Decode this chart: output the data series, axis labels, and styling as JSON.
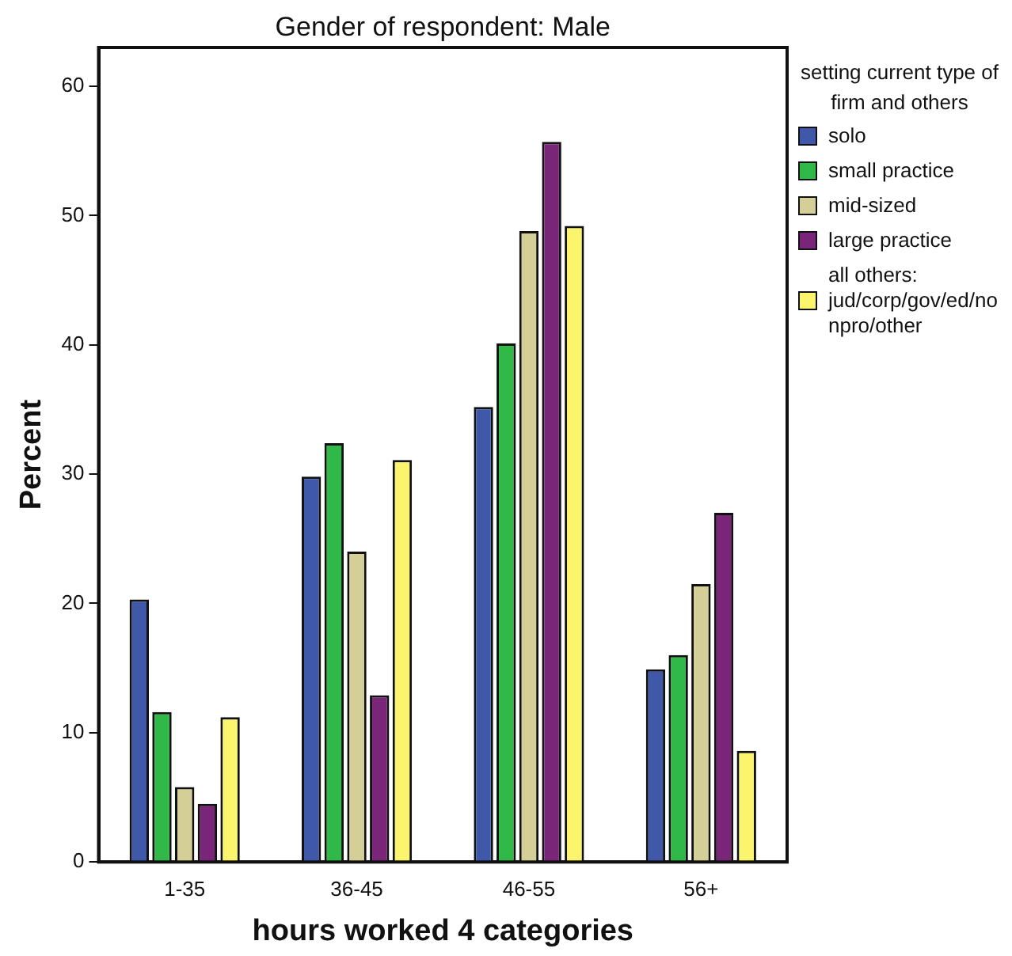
{
  "chart_data": {
    "type": "bar",
    "title": "Gender of respondent: Male",
    "xlabel": "hours worked 4 categories",
    "ylabel": "Percent",
    "legend_title": "setting current type of firm and others",
    "legend": "right",
    "grid": false,
    "categories": [
      "1-35",
      "36-45",
      "46-55",
      "56+"
    ],
    "series": [
      {
        "name": "solo",
        "color": "#3f58aa",
        "values": [
          20.3,
          29.8,
          35.2,
          14.9
        ]
      },
      {
        "name": "small practice",
        "color": "#30b848",
        "values": [
          11.6,
          32.4,
          40.1,
          16.0
        ]
      },
      {
        "name": "mid-sized",
        "color": "#d4cf96",
        "values": [
          5.8,
          24.0,
          48.8,
          21.5
        ]
      },
      {
        "name": "large practice",
        "color": "#7a2678",
        "values": [
          4.5,
          12.9,
          55.7,
          27.0
        ]
      },
      {
        "name": "all others: jud/corp/gov/ed/nonpro/other",
        "color": "#faf56c",
        "values": [
          11.2,
          31.1,
          49.2,
          8.6
        ]
      }
    ],
    "ylim": [
      0,
      63
    ],
    "yticks": [
      0,
      10,
      20,
      30,
      40,
      50,
      60
    ]
  }
}
